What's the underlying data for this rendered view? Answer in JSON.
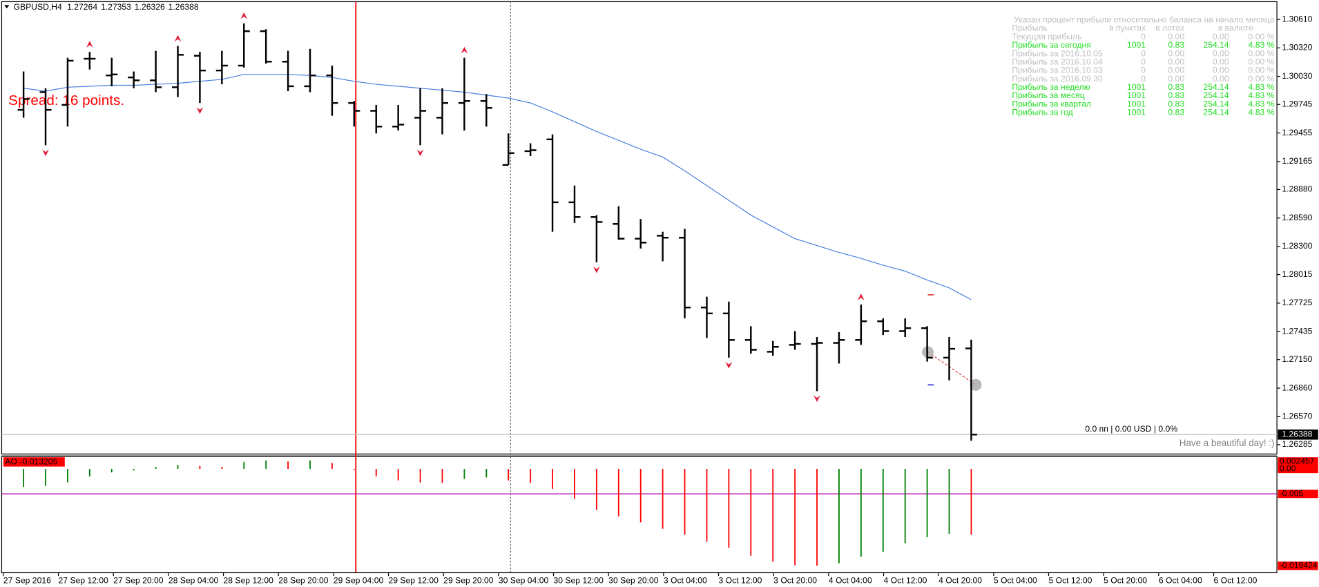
{
  "chart_data": [
    {
      "type": "ohlc",
      "title": "GBPUSD,H4",
      "color": "#000000",
      "open": [
        1.2969,
        1.2987,
        1.2974,
        1.3021,
        1.3004,
        1.3002,
        1.2999,
        1.2992,
        1.3024,
        1.3009,
        1.3014,
        1.3049,
        1.3018,
        1.2993,
        1.3004,
        1.2976,
        1.2968,
        1.2952,
        1.2961,
        1.2961,
        1.2976,
        1.2978,
        1.2913,
        1.2927,
        1.2939,
        1.2875,
        1.286,
        1.2853,
        1.2838,
        1.2841,
        1.2839,
        1.2768,
        1.2762,
        1.2735,
        1.2723,
        1.273,
        1.2731,
        1.2732,
        1.2735,
        1.2754,
        1.2744,
        1.2747,
        1.2717,
        1.27264
      ],
      "high": [
        1.3008,
        1.2991,
        1.3022,
        1.3028,
        1.3022,
        1.3008,
        1.3029,
        1.3034,
        1.3028,
        1.3029,
        1.3057,
        1.3051,
        1.3029,
        1.3031,
        1.3014,
        1.2978,
        1.2974,
        1.2974,
        1.2991,
        1.2991,
        1.3022,
        1.2985,
        1.2945,
        1.2935,
        1.2944,
        1.2892,
        1.2862,
        1.2871,
        1.2858,
        1.2845,
        1.2848,
        1.2779,
        1.2774,
        1.2749,
        1.2734,
        1.2744,
        1.2738,
        1.2743,
        1.2771,
        1.2757,
        1.2757,
        1.2749,
        1.2738,
        1.27353
      ],
      "low": [
        1.2961,
        1.2933,
        1.2952,
        1.301,
        1.2993,
        1.2991,
        1.2987,
        1.2982,
        1.2976,
        1.2995,
        1.3012,
        1.3016,
        1.2988,
        1.2987,
        1.2963,
        1.2952,
        1.2945,
        1.2948,
        1.2933,
        1.2944,
        1.2948,
        1.2952,
        1.2913,
        1.2922,
        1.2845,
        1.2854,
        1.2814,
        1.2837,
        1.2828,
        1.2815,
        1.2757,
        1.2737,
        1.2717,
        1.2721,
        1.2719,
        1.2725,
        1.2683,
        1.2711,
        1.273,
        1.274,
        1.2738,
        1.2713,
        1.2694,
        1.26326
      ],
      "close": [
        1.298,
        1.2969,
        1.3019,
        1.3021,
        1.3005,
        1.2999,
        1.2992,
        1.3025,
        1.3009,
        1.3014,
        1.3049,
        1.3018,
        1.2993,
        1.3004,
        1.2976,
        1.2968,
        1.2952,
        1.2954,
        1.2968,
        1.2976,
        1.2978,
        1.2971,
        1.2925,
        1.2928,
        1.2875,
        1.286,
        1.2855,
        1.2838,
        1.2834,
        1.2839,
        1.2768,
        1.2762,
        1.2735,
        1.2725,
        1.2728,
        1.2731,
        1.2732,
        1.2735,
        1.2754,
        1.2744,
        1.2747,
        1.2717,
        1.2726,
        1.26388
      ],
      "moving_average": {
        "color": "#4a7fe0",
        "values": [
          1.2991,
          1.2988,
          1.2992,
          1.2993,
          1.2994,
          1.2994,
          1.2995,
          1.2996,
          1.2998,
          1.3,
          1.3005,
          1.3005,
          1.3005,
          1.3004,
          1.3002,
          1.2998,
          1.2995,
          1.2993,
          1.2991,
          1.2989,
          1.2987,
          1.2984,
          1.2981,
          1.2976,
          1.2967,
          1.2957,
          1.2947,
          1.2938,
          1.2929,
          1.2921,
          1.2907,
          1.2892,
          1.2877,
          1.2862,
          1.285,
          1.2838,
          1.2831,
          1.2824,
          1.2818,
          1.2811,
          1.2805,
          1.2796,
          1.2788,
          1.2776
        ]
      },
      "fractals": {
        "color": "#e0203a",
        "up": [
          null,
          null,
          null,
          1.3028,
          null,
          null,
          null,
          1.3034,
          null,
          null,
          1.3057,
          null,
          null,
          null,
          null,
          null,
          null,
          null,
          null,
          null,
          1.3022,
          null,
          null,
          null,
          null,
          null,
          null,
          null,
          null,
          null,
          null,
          null,
          null,
          null,
          null,
          null,
          null,
          null,
          1.2771,
          null,
          null,
          null,
          null,
          null
        ],
        "down": [
          null,
          1.2933,
          null,
          null,
          null,
          null,
          null,
          null,
          1.2976,
          null,
          null,
          null,
          null,
          null,
          null,
          null,
          null,
          null,
          1.2933,
          null,
          null,
          null,
          null,
          null,
          null,
          null,
          1.2814,
          null,
          null,
          null,
          null,
          null,
          1.2717,
          null,
          null,
          null,
          1.2683,
          null,
          null,
          null,
          null,
          null,
          null,
          null
        ]
      },
      "ylim": [
        1.26191,
        1.3079
      ],
      "yticks": [
        {
          "value": 1.3061,
          "label": "1.30610"
        },
        {
          "value": 1.3032,
          "label": "1.30320"
        },
        {
          "value": 1.3003,
          "label": "1.30030"
        },
        {
          "value": 1.29745,
          "label": "1.29745"
        },
        {
          "value": 1.29455,
          "label": "1.29455"
        },
        {
          "value": 1.29165,
          "label": "1.29165"
        },
        {
          "value": 1.2888,
          "label": "1.28880"
        },
        {
          "value": 1.2859,
          "label": "1.28590"
        },
        {
          "value": 1.283,
          "label": "1.28300"
        },
        {
          "value": 1.28015,
          "label": "1.28015"
        },
        {
          "value": 1.27725,
          "label": "1.27725"
        },
        {
          "value": 1.27435,
          "label": "1.27435"
        },
        {
          "value": 1.2715,
          "label": "1.27150"
        },
        {
          "value": 1.2686,
          "label": "1.26860"
        },
        {
          "value": 1.2657,
          "label": "1.26570"
        },
        {
          "value": 1.26285,
          "label": "1.26285"
        }
      ]
    },
    {
      "type": "bar",
      "title": "AO",
      "up_color": "#008000",
      "down_color": "#ff0000",
      "values": [
        -0.0036,
        -0.0034,
        -0.0027,
        -0.0015,
        -0.0007,
        -0.0003,
        0.0004,
        0.0008,
        0.0006,
        0.0004,
        0.0014,
        0.0017,
        0.0015,
        0.0017,
        0.0012,
        -0.0002,
        -0.0015,
        -0.0023,
        -0.0027,
        -0.0028,
        -0.002,
        -0.0017,
        -0.0023,
        -0.0028,
        -0.004,
        -0.006,
        -0.0082,
        -0.0095,
        -0.0107,
        -0.012,
        -0.0132,
        -0.0146,
        -0.0158,
        -0.0174,
        -0.0186,
        -0.0193,
        -0.0194,
        -0.0189,
        -0.0176,
        -0.0166,
        -0.0149,
        -0.0137,
        -0.013,
        -0.013205
      ],
      "ylim": [
        -0.0208,
        0.0025
      ],
      "yticks": [
        0.002457,
        {
          "value": 0,
          "label": "0.00"
        },
        -0.005,
        -0.019424
      ],
      "level_line": {
        "value": -0.005,
        "color": "#b000b0"
      }
    }
  ],
  "time_axis": [
    "27 Sep 2016",
    "27 Sep 12:00",
    "27 Sep 20:00",
    "28 Sep 04:00",
    "28 Sep 12:00",
    "28 Sep 20:00",
    "29 Sep 04:00",
    "29 Sep 12:00",
    "29 Sep 20:00",
    "30 Sep 04:00",
    "30 Sep 12:00",
    "30 Sep 20:00",
    "3 Oct 04:00",
    "3 Oct 12:00",
    "3 Oct 20:00",
    "4 Oct 04:00",
    "4 Oct 12:00",
    "4 Oct 20:00",
    "5 Oct 04:00",
    "5 Oct 12:00",
    "5 Oct 20:00",
    "6 Oct 04:00",
    "6 Oct 12:00"
  ],
  "spread": "Spread: 16 points.",
  "status": "0.0 пп | 0.00 USD | 0.0%",
  "greeting": "Have a beautiful day! :)",
  "info_panel": {
    "note": "Указан процент прибыли относительно баланса на начало месяца",
    "columns": [
      "Прибыль",
      "в пунктах",
      "в лотах",
      "в валюте"
    ],
    "highlight_color": "#22dd22",
    "rows": [
      [
        "Текущая прибыль",
        "0",
        "0.00",
        "0.00",
        "0.00 %"
      ],
      [
        "Прибыль за сегодня",
        "1001",
        "0.83",
        "254.14",
        "4.83 %"
      ],
      [
        "Прибыль за 2016.10.05",
        "0",
        "0.00",
        "0.00",
        "0.00 %"
      ],
      [
        "Прибыль за 2016.10.04",
        "0",
        "0.00",
        "0.00",
        "0.00 %"
      ],
      [
        "Прибыль за 2016.10.03",
        "0",
        "0.00",
        "0.00",
        "0.00 %"
      ],
      [
        "Прибыль за 2016.09.30",
        "0",
        "0.00",
        "0.00",
        "0.00 %"
      ],
      [
        "Прибыль за неделю",
        "1001",
        "0.83",
        "254.14",
        "4.83 %"
      ],
      [
        "Прибыль за месяц",
        "1001",
        "0.83",
        "254.14",
        "4.83 %"
      ],
      [
        "Прибыль за квартал",
        "1001",
        "0.83",
        "254.14",
        "4.83 %"
      ],
      [
        "Прибыль за год",
        "1001",
        "0.83",
        "254.14",
        "4.83 %"
      ]
    ],
    "highlighted_rows": [
      false,
      true,
      false,
      false,
      false,
      false,
      true,
      true,
      true,
      true
    ]
  }
}
